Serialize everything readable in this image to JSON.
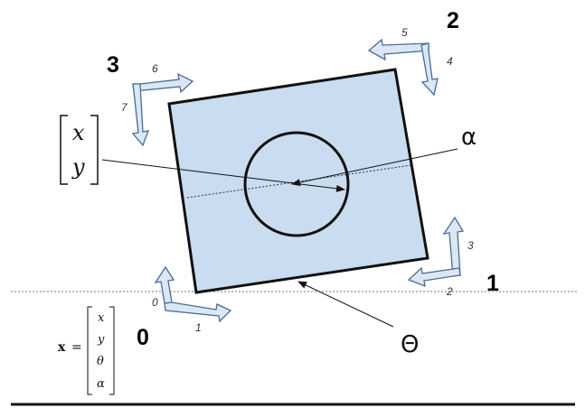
{
  "corners": {
    "c0": "0",
    "c1": "1",
    "c2": "2",
    "c3": "3"
  },
  "arrow_numbers": [
    "0",
    "1",
    "2",
    "3",
    "4",
    "5",
    "6",
    "7"
  ],
  "labels": {
    "alpha": "α",
    "theta": "Θ"
  },
  "position_vector": [
    "x",
    "y"
  ],
  "state_vector": {
    "lhs": "x",
    "equals": "=",
    "entries": [
      "x",
      "y",
      "θ",
      "α"
    ]
  },
  "colors": {
    "body_fill": "#c9dcf0",
    "arrow_fill": "#dbe7f5",
    "arrow_stroke": "#4a6c95",
    "ink": "#111111"
  }
}
